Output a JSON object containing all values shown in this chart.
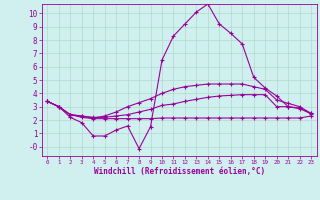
{
  "background_color": "#cff0ee",
  "grid_color": "#b0d8cc",
  "line_color": "#990099",
  "xlabel": "Windchill (Refroidissement éolien,°C)",
  "xlim": [
    -0.5,
    23.5
  ],
  "ylim": [
    -0.7,
    10.7
  ],
  "yticks": [
    0,
    1,
    2,
    3,
    4,
    5,
    6,
    7,
    8,
    9,
    10
  ],
  "ytick_labels": [
    "-0",
    "1",
    "2",
    "3",
    "4",
    "5",
    "6",
    "7",
    "8",
    "9",
    "10"
  ],
  "xticks": [
    0,
    1,
    2,
    3,
    4,
    5,
    6,
    7,
    8,
    9,
    10,
    11,
    12,
    13,
    14,
    15,
    16,
    17,
    18,
    19,
    20,
    21,
    22,
    23
  ],
  "series": [
    [
      3.4,
      3.0,
      2.4,
      2.2,
      2.1,
      2.1,
      2.1,
      2.1,
      2.1,
      2.1,
      2.15,
      2.15,
      2.15,
      2.15,
      2.15,
      2.15,
      2.15,
      2.15,
      2.15,
      2.15,
      2.15,
      2.15,
      2.15,
      2.3
    ],
    [
      3.4,
      3.0,
      2.4,
      2.3,
      2.2,
      2.2,
      2.3,
      2.4,
      2.6,
      2.8,
      3.1,
      3.2,
      3.4,
      3.55,
      3.7,
      3.8,
      3.85,
      3.9,
      3.9,
      3.9,
      3.0,
      3.0,
      2.85,
      2.5
    ],
    [
      3.4,
      3.0,
      2.4,
      2.3,
      2.15,
      2.3,
      2.6,
      3.0,
      3.3,
      3.6,
      4.0,
      4.3,
      4.5,
      4.6,
      4.7,
      4.7,
      4.7,
      4.7,
      4.5,
      4.3,
      3.5,
      3.25,
      3.0,
      2.5
    ],
    [
      3.4,
      3.0,
      2.2,
      1.8,
      0.8,
      0.8,
      1.25,
      1.55,
      -0.15,
      1.5,
      6.5,
      8.3,
      9.2,
      10.1,
      10.7,
      9.2,
      8.5,
      7.7,
      5.2,
      4.4,
      3.8,
      3.0,
      2.9,
      2.45
    ]
  ]
}
